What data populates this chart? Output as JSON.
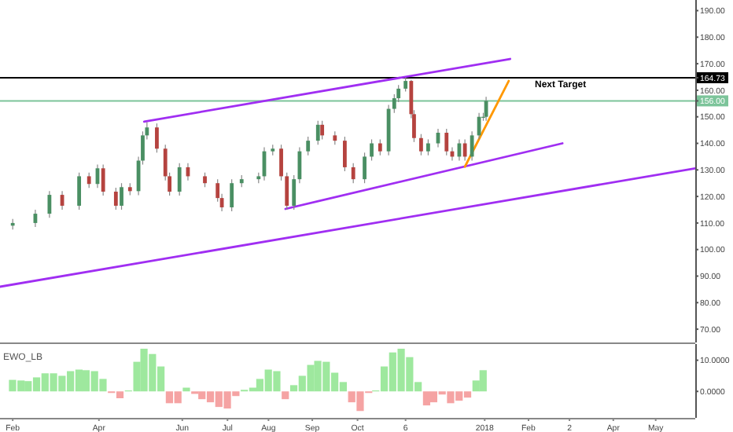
{
  "chart_data": [
    {
      "type": "candlestick",
      "xlim": [
        "2017-01-23",
        "2018-05-30"
      ],
      "ylim": [
        65,
        194
      ],
      "tick_labels": "y",
      "grid": false,
      "yticks": [
        {
          "value": 70,
          "label": "70.00"
        },
        {
          "value": 80,
          "label": "80.00"
        },
        {
          "value": 90,
          "label": "90.00"
        },
        {
          "value": 100,
          "label": "100.00"
        },
        {
          "value": 110,
          "label": "110.00"
        },
        {
          "value": 120,
          "label": "120.00"
        },
        {
          "value": 130,
          "label": "130.00"
        },
        {
          "value": 140,
          "label": "140.00"
        },
        {
          "value": 150,
          "label": "150.00"
        },
        {
          "value": 160,
          "label": "160.00"
        },
        {
          "value": 170,
          "label": "170.00"
        },
        {
          "value": 180,
          "label": "180.00"
        },
        {
          "value": 190,
          "label": "190.00"
        },
        {
          "value": 164.73,
          "label": "164.73"
        },
        {
          "value": 156,
          "label": "156.00"
        }
      ],
      "x": [
        "2017-02-01",
        "2017-02-17",
        "2017-02-27",
        "2017-03-08",
        "2017-03-20",
        "2017-03-27",
        "2017-04-02",
        "2017-04-06",
        "2017-04-15",
        "2017-04-19",
        "2017-04-25",
        "2017-05-01",
        "2017-05-04",
        "2017-05-07",
        "2017-05-14",
        "2017-05-20",
        "2017-05-23",
        "2017-05-30",
        "2017-06-05",
        "2017-06-17",
        "2017-06-26",
        "2017-06-29",
        "2017-07-06",
        "2017-07-13",
        "2017-07-25",
        "2017-07-29",
        "2017-08-04",
        "2017-08-10",
        "2017-08-14",
        "2017-08-19",
        "2017-08-23",
        "2017-08-29",
        "2017-09-05",
        "2017-09-08",
        "2017-09-17",
        "2017-09-24",
        "2017-09-30",
        "2017-10-08",
        "2017-10-13",
        "2017-10-19",
        "2017-10-25",
        "2017-10-29",
        "2017-11-01",
        "2017-11-06",
        "2017-11-10",
        "2017-11-12",
        "2017-11-17",
        "2017-11-22",
        "2017-11-29",
        "2017-12-05",
        "2017-12-09",
        "2017-12-14",
        "2017-12-18",
        "2017-12-23",
        "2017-12-28",
        "2017-12-31",
        "2018-01-02"
      ],
      "ohlc": [
        [
          109,
          111.5,
          107.5,
          110
        ],
        [
          110,
          115,
          108.5,
          113.5
        ],
        [
          113.5,
          122,
          112,
          120.6
        ],
        [
          120.6,
          122,
          115,
          116.5
        ],
        [
          116.5,
          129,
          115,
          127.6
        ],
        [
          127.6,
          129,
          123.2,
          124.7
        ],
        [
          124.7,
          132,
          123.2,
          130.6
        ],
        [
          130.6,
          132,
          120.3,
          121.8
        ],
        [
          121.8,
          123.3,
          115,
          116.5
        ],
        [
          116.5,
          125,
          115,
          123.5
        ],
        [
          123.5,
          125,
          120.5,
          122
        ],
        [
          122,
          135,
          120.5,
          133.5
        ],
        [
          133.5,
          144.5,
          132,
          143
        ],
        [
          143,
          148,
          141.5,
          146
        ],
        [
          146,
          147.5,
          136.5,
          138
        ],
        [
          138,
          139.5,
          126,
          127.6
        ],
        [
          127.6,
          129,
          120.3,
          121.8
        ],
        [
          121.8,
          132.5,
          120.3,
          131
        ],
        [
          131,
          132.5,
          126,
          127.6
        ],
        [
          127.6,
          129,
          123.5,
          125
        ],
        [
          125,
          126.5,
          118,
          119.4
        ],
        [
          119.4,
          121,
          114.4,
          115.9
        ],
        [
          115.9,
          126.5,
          114.4,
          125
        ],
        [
          125,
          128,
          123.5,
          126.5
        ],
        [
          126.5,
          129,
          125,
          127.6
        ],
        [
          127.6,
          138.5,
          126,
          137
        ],
        [
          137,
          139.5,
          135.5,
          138
        ],
        [
          138,
          139.5,
          126,
          127.6
        ],
        [
          127.6,
          129,
          115,
          116.5
        ],
        [
          116.5,
          128,
          115,
          126.5
        ],
        [
          126.5,
          138.5,
          125,
          137
        ],
        [
          137,
          142.5,
          135.5,
          141
        ],
        [
          141,
          148.5,
          139.5,
          147
        ],
        [
          147,
          148.5,
          141.5,
          143
        ],
        [
          143,
          144.5,
          139.5,
          141
        ],
        [
          141,
          142.5,
          129.5,
          131
        ],
        [
          131,
          132.5,
          125,
          126.5
        ],
        [
          126.5,
          136.5,
          125,
          135
        ],
        [
          135,
          141.5,
          133.5,
          140
        ],
        [
          140,
          141.5,
          135.5,
          137
        ],
        [
          137,
          154.5,
          135.5,
          153
        ],
        [
          153,
          158.5,
          151.5,
          157
        ],
        [
          157,
          162,
          155.5,
          160.6
        ],
        [
          160.6,
          164.73,
          159.5,
          163.5
        ],
        [
          163.5,
          164,
          149.5,
          151
        ],
        [
          151,
          152.5,
          140.5,
          142
        ],
        [
          142,
          143.5,
          135.5,
          137
        ],
        [
          137,
          141.5,
          135.5,
          140
        ],
        [
          140,
          145.5,
          138.5,
          144
        ],
        [
          144,
          145.5,
          135.5,
          137
        ],
        [
          137,
          138.5,
          133.5,
          135
        ],
        [
          135,
          141.5,
          133.5,
          140
        ],
        [
          140,
          141.5,
          133.5,
          135
        ],
        [
          135,
          144.5,
          133.5,
          143
        ],
        [
          143,
          151.5,
          141.5,
          150
        ],
        [
          150,
          151.5,
          148.5,
          150
        ],
        [
          150,
          157.5,
          148.5,
          156
        ]
      ],
      "series": [
        {
          "type": "line",
          "color": "#a02ef2",
          "x": [
            "2017-05-05",
            "2018-01-19"
          ],
          "values": [
            148.2,
            171.8
          ]
        },
        {
          "type": "line",
          "color": "#a02ef2",
          "x": [
            "2017-08-13",
            "2018-02-25"
          ],
          "values": [
            115.3,
            140
          ]
        },
        {
          "type": "line",
          "color": "#a02ef2",
          "x": [
            "2017-01-23",
            "2018-05-30"
          ],
          "values": [
            86,
            130.6
          ]
        },
        {
          "type": "line",
          "color": "#ff9800",
          "x": [
            "2017-12-18",
            "2018-01-18"
          ],
          "values": [
            131.2,
            163.5
          ]
        }
      ],
      "ref_lines": [
        {
          "axis": "y",
          "value": 164.73,
          "label": "Next Target",
          "color": "#000000"
        },
        {
          "axis": "y",
          "value": 156,
          "color": "#7cc49a"
        }
      ]
    },
    {
      "type": "bar",
      "title": "EWO_LB",
      "xlim": [
        "2017-01-23",
        "2018-05-30"
      ],
      "ylim": [
        -8.5,
        15.2
      ],
      "grid": false,
      "yticks": [
        {
          "value": 0,
          "label": "0.0000"
        },
        {
          "value": 10,
          "label": "10.0000"
        }
      ],
      "xticks": [
        {
          "value": "2017-02-01",
          "label": "Feb"
        },
        {
          "value": "2017-04-03",
          "label": "Apr"
        },
        {
          "value": "2017-06-01",
          "label": "Jun"
        },
        {
          "value": "2017-07-03",
          "label": "Jul"
        },
        {
          "value": "2017-08-01",
          "label": "Aug"
        },
        {
          "value": "2017-09-01",
          "label": "Sep"
        },
        {
          "value": "2017-10-03",
          "label": "Oct"
        },
        {
          "value": "2017-11-06",
          "label": "6"
        },
        {
          "value": "2018-01-01",
          "label": "2018"
        },
        {
          "value": "2018-02-01",
          "label": "Feb"
        },
        {
          "value": "2018-03-02",
          "label": "2"
        },
        {
          "value": "2018-04-02",
          "label": "Apr"
        },
        {
          "value": "2018-05-02",
          "label": "May"
        }
      ],
      "x": [
        "2017-02-01",
        "2017-02-07",
        "2017-02-12",
        "2017-02-18",
        "2017-02-24",
        "2017-03-02",
        "2017-03-08",
        "2017-03-14",
        "2017-03-20",
        "2017-03-25",
        "2017-03-31",
        "2017-04-06",
        "2017-04-12",
        "2017-04-18",
        "2017-04-24",
        "2017-04-30",
        "2017-05-05",
        "2017-05-11",
        "2017-05-17",
        "2017-05-23",
        "2017-05-29",
        "2017-06-04",
        "2017-06-10",
        "2017-06-15",
        "2017-06-21",
        "2017-06-27",
        "2017-07-03",
        "2017-07-09",
        "2017-07-15",
        "2017-07-21",
        "2017-07-26",
        "2017-08-01",
        "2017-08-07",
        "2017-08-13",
        "2017-08-19",
        "2017-08-25",
        "2017-08-31",
        "2017-09-05",
        "2017-09-11",
        "2017-09-17",
        "2017-09-23",
        "2017-09-29",
        "2017-10-05",
        "2017-10-11",
        "2017-10-16",
        "2017-10-22",
        "2017-10-28",
        "2017-11-03",
        "2017-11-09",
        "2017-11-15",
        "2017-11-21",
        "2017-11-26",
        "2017-12-02",
        "2017-12-08",
        "2017-12-14",
        "2017-12-20",
        "2017-12-26",
        "2017-12-31"
      ],
      "values": [
        3.7,
        3.5,
        3.3,
        4.5,
        5.8,
        5.8,
        5,
        6.5,
        7,
        6.8,
        6.5,
        4,
        -0.5,
        -2.2,
        0.3,
        9.5,
        13.7,
        12,
        8,
        -3.8,
        -3.8,
        1.2,
        -0.8,
        -2.5,
        -3.5,
        -5,
        -5.5,
        -1.5,
        0.5,
        1.2,
        4,
        7,
        6.5,
        -2.5,
        2,
        5,
        8.5,
        9.8,
        9.5,
        6,
        3,
        -3.5,
        -6.3,
        -0.5,
        0.3,
        8,
        12.5,
        13.7,
        11,
        3,
        -4.5,
        -3.5,
        -1,
        -3.8,
        -3,
        -2,
        3.5,
        6.8
      ],
      "colors": [
        "#9ee89e",
        "#9ee89e",
        "#9ee89e",
        "#9ee89e",
        "#9ee89e",
        "#9ee89e",
        "#9ee89e",
        "#9ee89e",
        "#9ee89e",
        "#9ee89e",
        "#9ee89e",
        "#9ee89e",
        "#f5a3a3",
        "#f5a3a3",
        "#9ee89e",
        "#9ee89e",
        "#9ee89e",
        "#9ee89e",
        "#9ee89e",
        "#f5a3a3",
        "#f5a3a3",
        "#9ee89e",
        "#f5a3a3",
        "#f5a3a3",
        "#f5a3a3",
        "#f5a3a3",
        "#f5a3a3",
        "#f5a3a3",
        "#9ee89e",
        "#9ee89e",
        "#9ee89e",
        "#9ee89e",
        "#9ee89e",
        "#f5a3a3",
        "#9ee89e",
        "#9ee89e",
        "#9ee89e",
        "#9ee89e",
        "#9ee89e",
        "#9ee89e",
        "#9ee89e",
        "#f5a3a3",
        "#f5a3a3",
        "#f5a3a3",
        "#9ee89e",
        "#9ee89e",
        "#9ee89e",
        "#9ee89e",
        "#9ee89e",
        "#9ee89e",
        "#f5a3a3",
        "#f5a3a3",
        "#f5a3a3",
        "#f5a3a3",
        "#f5a3a3",
        "#f5a3a3",
        "#9ee89e",
        "#9ee89e"
      ]
    }
  ]
}
